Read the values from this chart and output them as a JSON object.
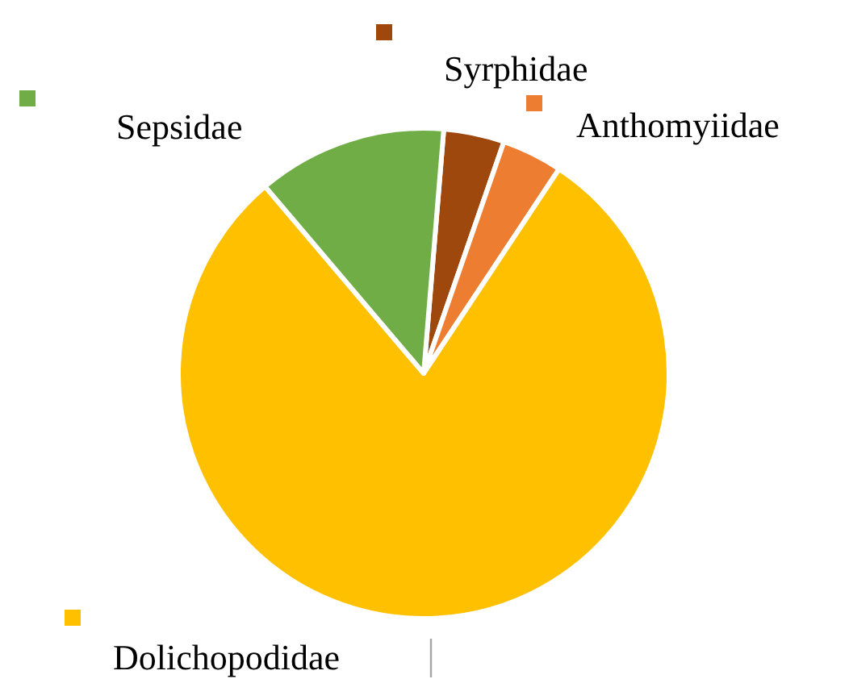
{
  "chart_data": {
    "type": "pie",
    "categories": [
      "Syrphidae",
      "Anthomyiidae",
      "Dolichopodidae",
      "Sepsidae"
    ],
    "values": [
      4,
      4,
      79.5,
      12.5
    ],
    "colors": [
      "#9e480e",
      "#ed7d31",
      "#ffc000",
      "#70ad47"
    ]
  }
}
